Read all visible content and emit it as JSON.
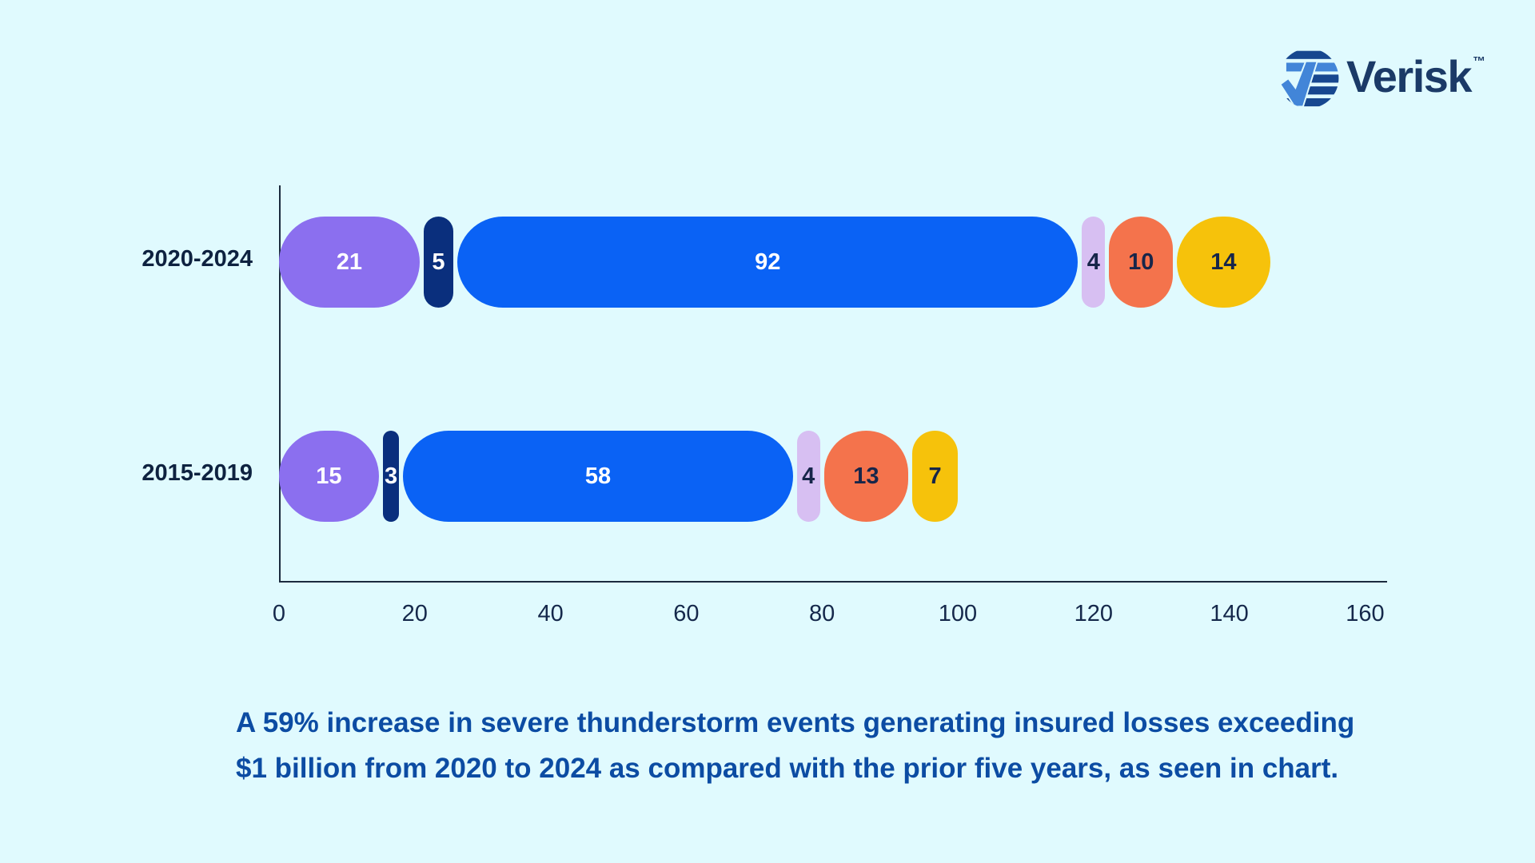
{
  "page": {
    "background": "#E0FAFE"
  },
  "logo": {
    "brand": "Verisk",
    "trademark": "™",
    "text_color": "#1B3A67",
    "emblem_navy": "#17478F",
    "emblem_light_blue": "#4285D8"
  },
  "chart_data": {
    "type": "bar",
    "orientation": "horizontal",
    "stacked": true,
    "title": "",
    "xlabel": "",
    "ylabel": "",
    "xlim": [
      0,
      163
    ],
    "xticks": [
      0,
      20,
      40,
      60,
      80,
      100,
      120,
      140,
      160
    ],
    "grid": false,
    "legend": false,
    "axis_color": "#1B2A3E",
    "tick_color": "#15284B",
    "label_color": "#0E2240",
    "rows": [
      {
        "label": "2020-2024",
        "segments": [
          {
            "value": 21,
            "color": "#8B6FEF",
            "text_color": "#FFFFFF"
          },
          {
            "value": 5,
            "color": "#0A2F7D",
            "text_color": "#FFFFFF"
          },
          {
            "value": 92,
            "color": "#0A62F5",
            "text_color": "#FFFFFF"
          },
          {
            "value": 4,
            "color": "#D7BFF2",
            "text_color": "#17264A"
          },
          {
            "value": 10,
            "color": "#F4734C",
            "text_color": "#17264A"
          },
          {
            "value": 14,
            "color": "#F6C20B",
            "text_color": "#17264A"
          }
        ]
      },
      {
        "label": "2015-2019",
        "segments": [
          {
            "value": 15,
            "color": "#8B6FEF",
            "text_color": "#FFFFFF"
          },
          {
            "value": 3,
            "color": "#0A2F7D",
            "text_color": "#FFFFFF"
          },
          {
            "value": 58,
            "color": "#0A62F5",
            "text_color": "#FFFFFF"
          },
          {
            "value": 4,
            "color": "#D7BFF2",
            "text_color": "#17264A"
          },
          {
            "value": 13,
            "color": "#F4734C",
            "text_color": "#17264A"
          },
          {
            "value": 7,
            "color": "#F6C20B",
            "text_color": "#17264A"
          }
        ]
      }
    ]
  },
  "caption": {
    "line1": "A 59% increase in severe thunderstorm events generating insured losses exceeding",
    "line2": "$1 billion from 2020 to 2024 as compared with the prior five years, as seen in chart.",
    "color": "#0C4CA3"
  }
}
